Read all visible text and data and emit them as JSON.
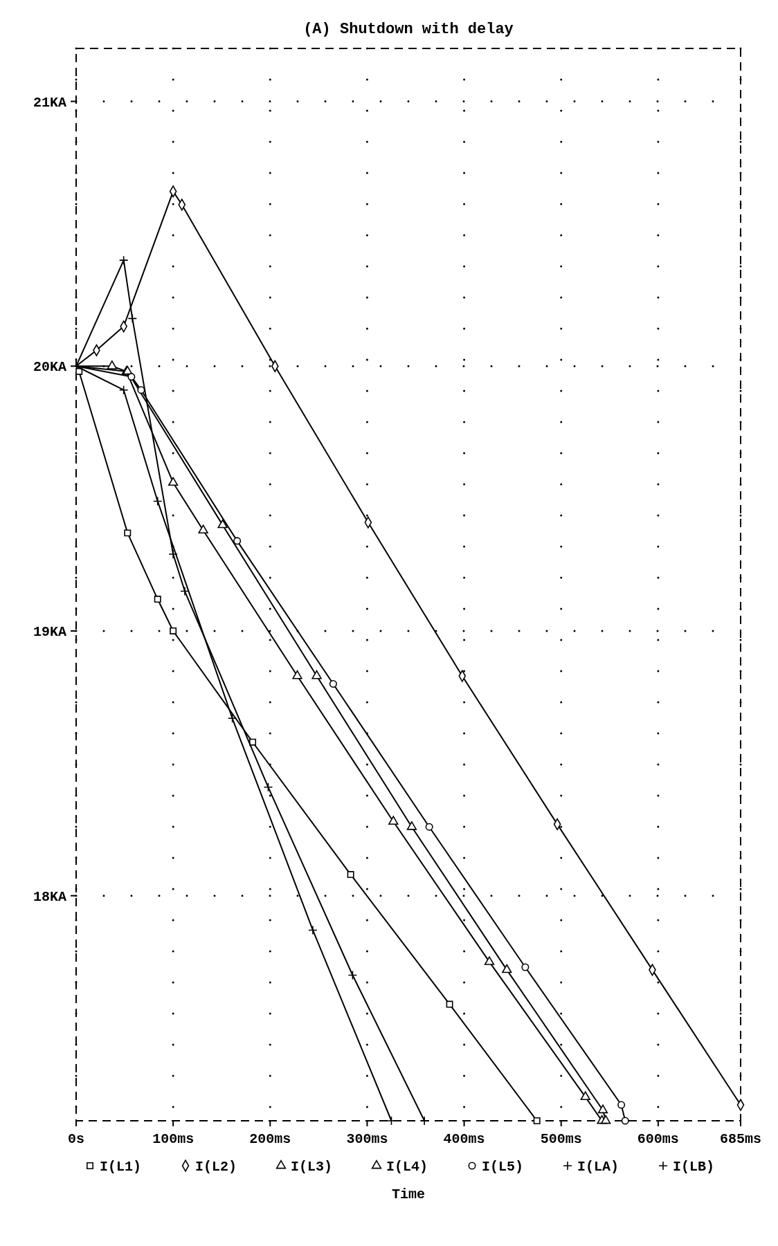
{
  "chart_data": {
    "type": "line",
    "title": "(A) Shutdown with delay",
    "xlabel": "Time",
    "xlim": [
      0,
      685
    ],
    "ylim": [
      17.15,
      21.2
    ],
    "xticks": [
      {
        "value": 0,
        "label": "0s"
      },
      {
        "value": 100,
        "label": "100ms"
      },
      {
        "value": 200,
        "label": "200ms"
      },
      {
        "value": 300,
        "label": "300ms"
      },
      {
        "value": 400,
        "label": "400ms"
      },
      {
        "value": 500,
        "label": "500ms"
      },
      {
        "value": 600,
        "label": "600ms"
      },
      {
        "value": 685,
        "label": "685ms"
      }
    ],
    "yticks": [
      {
        "value": 18,
        "label": "18KA"
      },
      {
        "value": 19,
        "label": "19KA"
      },
      {
        "value": 20,
        "label": "20KA"
      },
      {
        "value": 21,
        "label": "21KA"
      }
    ],
    "grid": true,
    "legend": "bottom",
    "series": [
      {
        "name": "I(L1)",
        "color": "#000000",
        "marker": "square",
        "x": [
          0,
          3,
          53,
          84,
          100,
          182,
          283,
          385,
          475
        ],
        "values": [
          20,
          19.98,
          19.37,
          19.12,
          19.0,
          18.58,
          18.08,
          17.59,
          17.15
        ]
      },
      {
        "name": "I(L2)",
        "color": "#000000",
        "marker": "diamond",
        "x": [
          0,
          21,
          49,
          100,
          109,
          205,
          301,
          398,
          496,
          594,
          685
        ],
        "values": [
          20,
          20.06,
          20.15,
          20.66,
          20.61,
          20.0,
          19.41,
          18.83,
          18.27,
          17.72,
          17.21
        ]
      },
      {
        "name": "I(L3)",
        "color": "#000000",
        "marker": "triangle",
        "x": [
          0,
          37,
          52,
          100,
          131,
          228,
          327,
          426,
          525,
          542
        ],
        "values": [
          20,
          20.0,
          19.98,
          19.56,
          19.38,
          18.83,
          18.28,
          17.75,
          17.24,
          17.15
        ]
      },
      {
        "name": "I(L4)",
        "color": "#000000",
        "marker": "triangle",
        "x": [
          0,
          53,
          151,
          248,
          346,
          444,
          543,
          546
        ],
        "values": [
          20,
          19.98,
          19.4,
          18.83,
          18.26,
          17.72,
          17.19,
          17.15
        ]
      },
      {
        "name": "I(L5)",
        "color": "#000000",
        "marker": "circle",
        "x": [
          0,
          57,
          67,
          166,
          265,
          364,
          463,
          562,
          566
        ],
        "values": [
          20,
          19.96,
          19.91,
          19.34,
          18.8,
          18.26,
          17.73,
          17.21,
          17.15
        ]
      },
      {
        "name": "I(LA)",
        "color": "#000000",
        "marker": "cross",
        "x": [
          0,
          49,
          58,
          100,
          112,
          198,
          285,
          359
        ],
        "values": [
          20,
          20.4,
          20.18,
          19.29,
          19.15,
          18.41,
          17.7,
          17.15
        ]
      },
      {
        "name": "I(LB)",
        "color": "#000000",
        "marker": "cross",
        "x": [
          0,
          49,
          84,
          161,
          244,
          325
        ],
        "values": [
          20,
          19.91,
          19.49,
          18.67,
          17.87,
          17.15
        ]
      }
    ]
  }
}
